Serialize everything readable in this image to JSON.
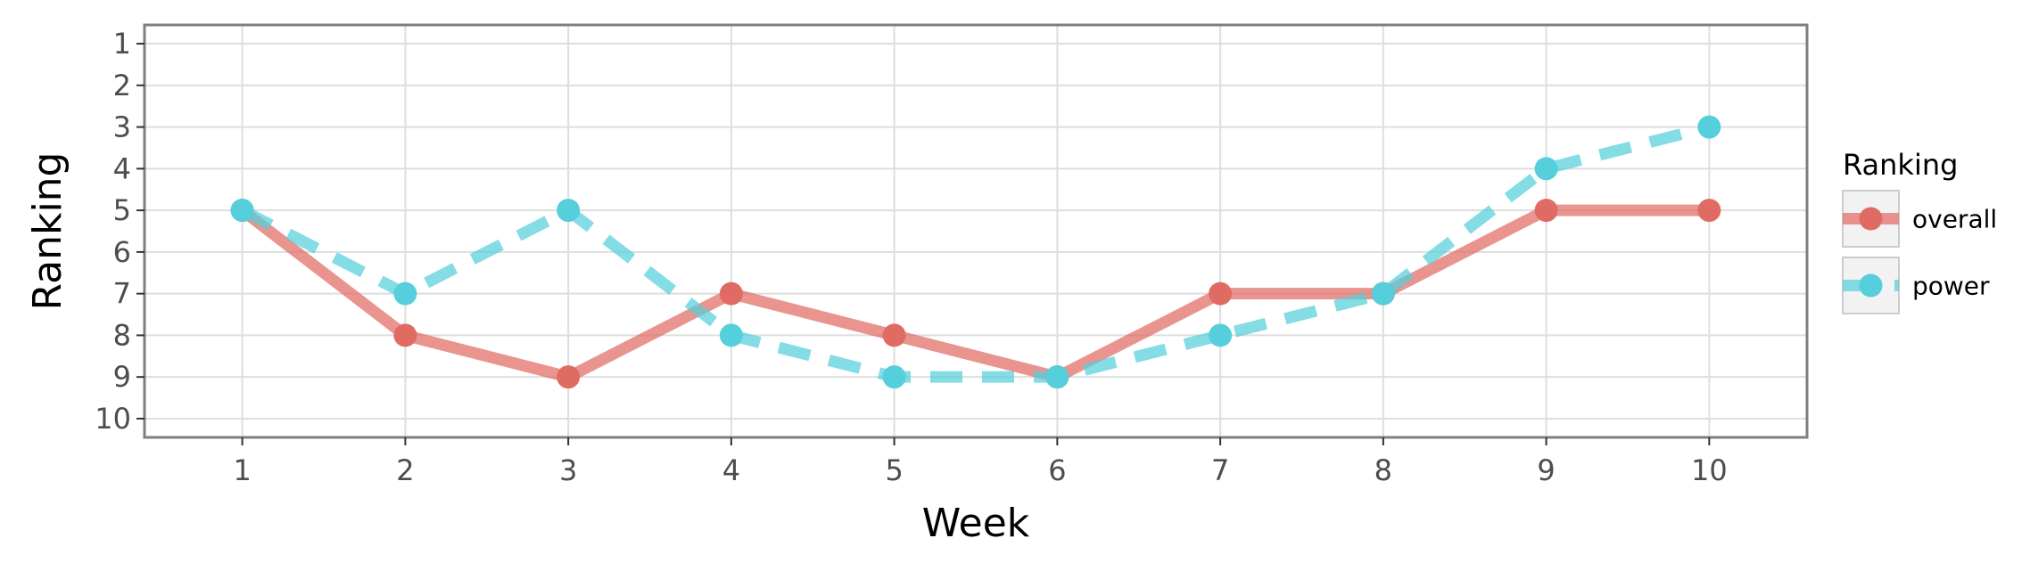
{
  "chart_data": {
    "type": "line",
    "title": "",
    "xlabel": "Week",
    "ylabel": "Ranking",
    "x": [
      1,
      2,
      3,
      4,
      5,
      6,
      7,
      8,
      9,
      10
    ],
    "x_ticks": [
      "1",
      "2",
      "3",
      "4",
      "5",
      "6",
      "7",
      "8",
      "9",
      "10"
    ],
    "y_ticks": [
      "1",
      "2",
      "3",
      "4",
      "5",
      "6",
      "7",
      "8",
      "9",
      "10"
    ],
    "xlim": [
      0.4,
      10.6
    ],
    "ylim": [
      0.55,
      10.45
    ],
    "y_reversed": true,
    "grid": true,
    "legend": {
      "title": "Ranking",
      "placement": "right"
    },
    "series": [
      {
        "name": "overall",
        "values": [
          5,
          8,
          9,
          7,
          8,
          9,
          7,
          7,
          5,
          5
        ],
        "color": "#e06b63",
        "linestyle": "solid"
      },
      {
        "name": "power",
        "values": [
          5,
          7,
          5,
          8,
          9,
          9,
          8,
          7,
          4,
          3
        ],
        "color": "#55cfdb",
        "linestyle": "dashed"
      }
    ]
  }
}
